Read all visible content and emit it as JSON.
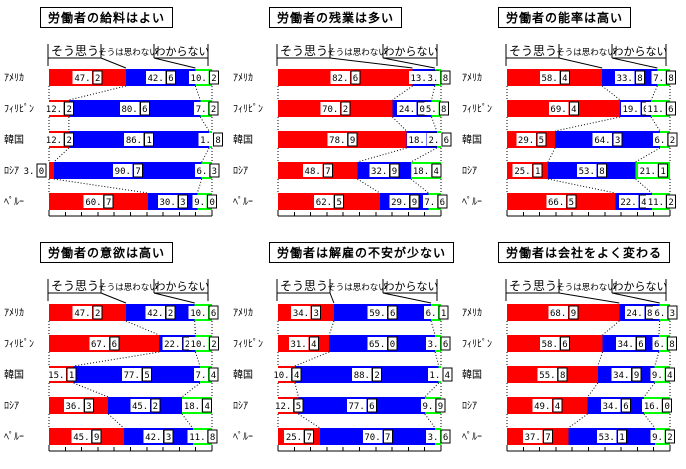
{
  "page": {
    "background": "#ffffff"
  },
  "legend": {
    "items": [
      {
        "label": "そう思う",
        "color": "#ff0000"
      },
      {
        "label": "そうは思わない",
        "color": "#0000ff"
      },
      {
        "label": "わからない",
        "color": "#00ff00"
      }
    ]
  },
  "chart_data": [
    {
      "type": "bar",
      "orientation": "horizontal",
      "stacked": true,
      "title": "労働者の給料はよい",
      "categories": [
        "ｱﾒﾘｶ",
        "ﾌｨﾘﾋﾟﾝ",
        "韓国",
        "ﾛｼｱ",
        "ﾍﾟﾙｰ"
      ],
      "xlim": [
        0,
        100
      ],
      "unit": "%",
      "series": [
        {
          "name": "そう思う",
          "color": "#ff0000",
          "values": [
            47.2,
            12.2,
            12.2,
            3.0,
            60.7
          ]
        },
        {
          "name": "そうは思わない",
          "color": "#0000ff",
          "values": [
            42.6,
            80.6,
            86.1,
            90.7,
            30.3
          ]
        },
        {
          "name": "わからない",
          "color": "#00ff00",
          "values": [
            10.2,
            7.2,
            1.8,
            6.3,
            9.0
          ]
        }
      ]
    },
    {
      "type": "bar",
      "orientation": "horizontal",
      "stacked": true,
      "title": "労働者の残業は多い",
      "categories": [
        "ｱﾒﾘｶ",
        "ﾌｨﾘﾋﾟﾝ",
        "韓国",
        "ﾛｼｱ",
        "ﾍﾟﾙｰ"
      ],
      "xlim": [
        0,
        100
      ],
      "unit": "%",
      "series": [
        {
          "name": "そう思う",
          "color": "#ff0000",
          "values": [
            82.6,
            70.2,
            78.9,
            48.7,
            62.5
          ]
        },
        {
          "name": "そうは思わない",
          "color": "#0000ff",
          "values": [
            13.7,
            24.0,
            18.5,
            32.9,
            29.9
          ]
        },
        {
          "name": "わからない",
          "color": "#00ff00",
          "values": [
            3.8,
            5.8,
            2.6,
            18.4,
            7.6
          ]
        }
      ]
    },
    {
      "type": "bar",
      "orientation": "horizontal",
      "stacked": true,
      "title": "労働者の能率は高い",
      "categories": [
        "ｱﾒﾘｶ",
        "ﾌｨﾘﾋﾟﾝ",
        "韓国",
        "ﾛｼｱ",
        "ﾍﾟﾙｰ"
      ],
      "xlim": [
        0,
        100
      ],
      "unit": "%",
      "series": [
        {
          "name": "そう思う",
          "color": "#ff0000",
          "values": [
            58.4,
            69.4,
            29.5,
            25.1,
            66.5
          ]
        },
        {
          "name": "そうは思わない",
          "color": "#0000ff",
          "values": [
            33.8,
            19.0,
            64.3,
            53.8,
            22.4
          ]
        },
        {
          "name": "わからない",
          "color": "#00ff00",
          "values": [
            7.8,
            11.6,
            6.2,
            21.1,
            11.2
          ]
        }
      ]
    },
    {
      "type": "bar",
      "orientation": "horizontal",
      "stacked": true,
      "title": "労働者の意欲は高い",
      "categories": [
        "ｱﾒﾘｶ",
        "ﾌｨﾘﾋﾟﾝ",
        "韓国",
        "ﾛｼｱ",
        "ﾍﾟﾙｰ"
      ],
      "xlim": [
        0,
        100
      ],
      "unit": "%",
      "series": [
        {
          "name": "そう思う",
          "color": "#ff0000",
          "values": [
            47.2,
            67.6,
            15.1,
            36.3,
            45.9
          ]
        },
        {
          "name": "そうは思わない",
          "color": "#0000ff",
          "values": [
            42.2,
            22.2,
            77.5,
            45.2,
            42.3
          ]
        },
        {
          "name": "わからない",
          "color": "#00ff00",
          "values": [
            10.6,
            10.2,
            7.4,
            18.4,
            11.8
          ]
        }
      ]
    },
    {
      "type": "bar",
      "orientation": "horizontal",
      "stacked": true,
      "title": "労働者は解雇の不安が少ない",
      "categories": [
        "ｱﾒﾘｶ",
        "ﾌｨﾘﾋﾟﾝ",
        "韓国",
        "ﾛｼｱ",
        "ﾍﾟﾙｰ"
      ],
      "xlim": [
        0,
        100
      ],
      "unit": "%",
      "series": [
        {
          "name": "そう思う",
          "color": "#ff0000",
          "values": [
            34.3,
            31.4,
            10.4,
            12.5,
            25.7
          ]
        },
        {
          "name": "そうは思わない",
          "color": "#0000ff",
          "values": [
            59.6,
            65.0,
            88.2,
            77.6,
            70.7
          ]
        },
        {
          "name": "わからない",
          "color": "#00ff00",
          "values": [
            6.1,
            3.6,
            1.4,
            9.9,
            3.6
          ]
        }
      ]
    },
    {
      "type": "bar",
      "orientation": "horizontal",
      "stacked": true,
      "title": "労働者は会社をよく変わる",
      "categories": [
        "ｱﾒﾘｶ",
        "ﾌｨﾘﾋﾟﾝ",
        "韓国",
        "ﾛｼｱ",
        "ﾍﾟﾙｰ"
      ],
      "xlim": [
        0,
        100
      ],
      "unit": "%",
      "series": [
        {
          "name": "そう思う",
          "color": "#ff0000",
          "values": [
            68.9,
            58.6,
            55.8,
            49.4,
            37.7
          ]
        },
        {
          "name": "そうは思わない",
          "color": "#0000ff",
          "values": [
            24.8,
            34.6,
            34.9,
            34.6,
            53.1
          ]
        },
        {
          "name": "わからない",
          "color": "#00ff00",
          "values": [
            6.3,
            6.8,
            9.4,
            16.0,
            9.2
          ]
        }
      ]
    }
  ]
}
